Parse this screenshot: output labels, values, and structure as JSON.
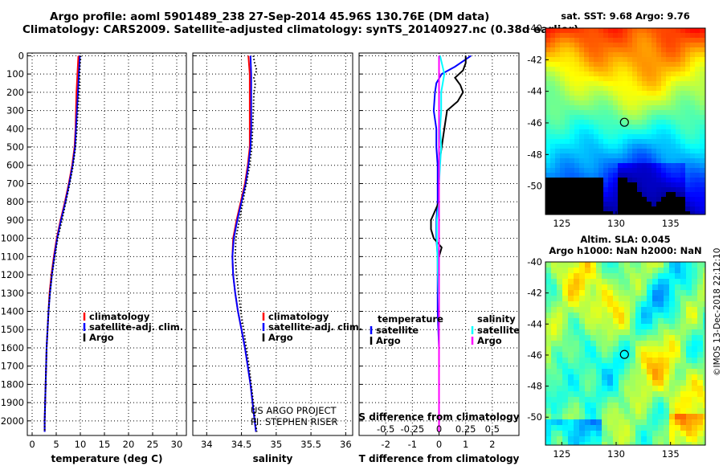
{
  "header": {
    "line1": "Argo profile: aoml 5901489_238 27-Sep-2014 45.96S 130.76E (DM data)",
    "line2": "Climatology: CARS2009. Satellite-adjusted climatology: synTS_20140927.nc (0.38d earlier)"
  },
  "credit": "©IMOS 13-Dec-2018 22:12:10",
  "colors": {
    "climatology": "#ff0000",
    "satellite": "#0000ff",
    "argo": "#000000",
    "sal_satellite": "#00ffff",
    "sal_argo": "#ff00ff"
  },
  "chart_data": [
    {
      "type": "line",
      "xlabel": "temperature (deg C)",
      "ylabel": "",
      "xlim": [
        -1,
        32
      ],
      "ylim": [
        2080,
        -15
      ],
      "x_ticks": [
        "0",
        "5",
        "10",
        "15",
        "20",
        "25",
        "30"
      ],
      "y_ticks": [
        "0",
        "100",
        "200",
        "300",
        "400",
        "500",
        "600",
        "700",
        "800",
        "900",
        "1000",
        "1100",
        "1200",
        "1300",
        "1400",
        "1500",
        "1600",
        "1700",
        "1800",
        "1900",
        "2000"
      ],
      "grid": true,
      "legend": "lower-right",
      "series": [
        {
          "name": "climatology",
          "color": "#ff0000",
          "depth": [
            0,
            50,
            100,
            150,
            200,
            300,
            400,
            500,
            600,
            700,
            800,
            900,
            1000,
            1100,
            1200,
            1300,
            1400,
            1500,
            1600,
            1700,
            1800,
            1900,
            2000,
            2060
          ],
          "values": [
            9.6,
            9.5,
            9.4,
            9.3,
            9.2,
            9.1,
            9.0,
            8.8,
            8.3,
            7.6,
            6.8,
            5.9,
            5.1,
            4.5,
            4.0,
            3.6,
            3.4,
            3.2,
            3.0,
            2.9,
            2.8,
            2.7,
            2.6,
            2.6
          ]
        },
        {
          "name": "satellite-adj. clim.",
          "color": "#0000ff",
          "depth": [
            0,
            50,
            100,
            150,
            200,
            300,
            400,
            500,
            600,
            700,
            800,
            900,
            1000,
            1100,
            1200,
            1300,
            1400,
            1500,
            1600,
            1700,
            1800,
            1900,
            2000,
            2060
          ],
          "values": [
            9.9,
            9.8,
            9.7,
            9.6,
            9.5,
            9.3,
            9.1,
            8.9,
            8.4,
            7.7,
            6.9,
            6.0,
            5.2,
            4.6,
            4.1,
            3.7,
            3.4,
            3.2,
            3.0,
            2.9,
            2.8,
            2.7,
            2.6,
            2.6
          ]
        },
        {
          "name": "Argo",
          "color": "#000000",
          "depth": [
            0,
            30,
            60,
            100,
            150,
            200,
            300,
            400,
            500,
            600,
            700,
            800,
            900,
            1000,
            1100,
            1200,
            1300,
            1400,
            1500,
            1600,
            1700,
            1800,
            1900,
            2000,
            2060
          ],
          "values": [
            10.1,
            10.0,
            9.9,
            9.8,
            9.8,
            9.7,
            9.5,
            9.3,
            9.0,
            8.5,
            7.8,
            7.0,
            6.2,
            5.3,
            4.7,
            4.1,
            3.7,
            3.4,
            3.2,
            3.0,
            2.9,
            2.8,
            2.7,
            2.6,
            2.6
          ]
        }
      ]
    },
    {
      "type": "line",
      "xlabel": "salinity",
      "ylabel": "",
      "xlim": [
        33.8,
        36.1
      ],
      "ylim": [
        2080,
        -15
      ],
      "x_ticks": [
        "34",
        "34.5",
        "35",
        "35.5",
        "36"
      ],
      "grid": true,
      "legend": "lower-right",
      "annotation": [
        "US ARGO PROJECT",
        "PI: STEPHEN RISER"
      ],
      "series": [
        {
          "name": "climatology",
          "color": "#ff0000",
          "depth": [
            0,
            100,
            200,
            300,
            400,
            500,
            600,
            700,
            800,
            900,
            1000,
            1100,
            1200,
            1300,
            1400,
            1500,
            1600,
            1700,
            1800,
            1900,
            2000,
            2060
          ],
          "values": [
            34.6,
            34.62,
            34.62,
            34.62,
            34.62,
            34.62,
            34.59,
            34.55,
            34.49,
            34.43,
            34.38,
            34.37,
            34.38,
            34.41,
            34.45,
            34.5,
            34.55,
            34.59,
            34.63,
            34.66,
            34.69,
            34.71
          ]
        },
        {
          "name": "satellite-adj. clim.",
          "color": "#0000ff",
          "depth": [
            0,
            100,
            200,
            300,
            400,
            500,
            600,
            700,
            800,
            900,
            1000,
            1100,
            1200,
            1300,
            1400,
            1500,
            1600,
            1700,
            1800,
            1900,
            2000,
            2060
          ],
          "values": [
            34.63,
            34.64,
            34.64,
            34.64,
            34.64,
            34.63,
            34.6,
            34.56,
            34.5,
            34.44,
            34.39,
            34.37,
            34.38,
            34.41,
            34.45,
            34.5,
            34.55,
            34.59,
            34.63,
            34.66,
            34.69,
            34.71
          ]
        },
        {
          "name": "Argo",
          "color": "#000000",
          "depth": [
            0,
            40,
            80,
            120,
            160,
            200,
            300,
            400,
            500,
            600,
            700,
            800,
            900,
            1000,
            1100,
            1200,
            1300,
            1400,
            1500,
            1600,
            1700,
            1800,
            1900,
            2000,
            2060
          ],
          "values": [
            34.67,
            34.69,
            34.72,
            34.68,
            34.7,
            34.68,
            34.67,
            34.66,
            34.65,
            34.62,
            34.57,
            34.52,
            34.47,
            34.42,
            34.41,
            34.43,
            34.46,
            34.49,
            34.53,
            34.57,
            34.61,
            34.64,
            34.67,
            34.7,
            34.72
          ]
        }
      ]
    },
    {
      "type": "line",
      "xlabel": "T difference from climatology",
      "xlabel2": "S difference from climatology",
      "xlim": [
        -3,
        3
      ],
      "ylim": [
        2080,
        -15
      ],
      "x_ticks": [
        "-2",
        "-1",
        "0",
        "1",
        "2"
      ],
      "x2_ticks": [
        "-0.5",
        "-0.25",
        "0",
        "0.25",
        "0.5"
      ],
      "grid": true,
      "legend": "lower",
      "legend_groups": {
        "temperature": "temperature",
        "salinity": "salinity"
      },
      "series": [
        {
          "name": "satellite",
          "group": "temperature",
          "color": "#0000ff",
          "depth": [
            0,
            30,
            60,
            100,
            150,
            200,
            300,
            400,
            500,
            600,
            700,
            800,
            900,
            1000,
            1100,
            1200,
            1400,
            1600,
            1800,
            2000,
            2060
          ],
          "values": [
            1.2,
            0.9,
            0.6,
            0.1,
            -0.1,
            -0.15,
            -0.2,
            -0.1,
            -0.1,
            -0.05,
            -0.05,
            -0.05,
            -0.1,
            -0.1,
            -0.05,
            -0.05,
            -0.05,
            0,
            0,
            0,
            0
          ]
        },
        {
          "name": "Argo",
          "group": "temperature",
          "color": "#000000",
          "depth": [
            0,
            40,
            80,
            120,
            160,
            200,
            250,
            300,
            400,
            500,
            600,
            700,
            800,
            900,
            950,
            1000,
            1050,
            1100,
            1200,
            1400,
            1600,
            1800,
            2000,
            2060
          ],
          "values": [
            1.0,
            1.0,
            0.9,
            0.6,
            0.8,
            0.9,
            0.7,
            0.3,
            0.2,
            0.1,
            0,
            0,
            0,
            -0.3,
            -0.3,
            -0.2,
            0.1,
            0,
            0,
            0,
            0,
            0,
            0,
            0
          ]
        },
        {
          "name": "satellite",
          "group": "salinity",
          "color": "#00ffff",
          "depth": [
            0,
            50,
            100,
            200,
            300,
            400,
            500,
            600,
            700,
            800,
            900,
            1000,
            1200,
            1400,
            1600,
            1800,
            2000,
            2060
          ],
          "values": [
            0.01,
            0.03,
            0.05,
            0.02,
            0.02,
            0.01,
            0.02,
            0.01,
            0,
            0,
            -0.02,
            -0.02,
            -0.01,
            0,
            0,
            0,
            0,
            0
          ]
        },
        {
          "name": "Argo",
          "group": "salinity",
          "color": "#ff00ff",
          "depth": [
            0,
            2060
          ],
          "values": [
            0,
            0
          ]
        }
      ]
    },
    {
      "type": "heatmap",
      "title": "sat. SST: 9.68 Argo: 9.76",
      "xlim": [
        123.5,
        138.2
      ],
      "ylim": [
        -51.8,
        -40
      ],
      "x_ticks": [
        "125",
        "130",
        "135"
      ],
      "y_ticks": [
        "-40",
        "-42",
        "-44",
        "-46",
        "-48",
        "-50"
      ],
      "marker": {
        "lon": 130.76,
        "lat": -45.96
      }
    },
    {
      "type": "heatmap",
      "title": "Altim. SLA: 0.045",
      "subtitle": "Argo h1000: NaN h2000: NaN",
      "xlim": [
        123.5,
        138.2
      ],
      "ylim": [
        -51.8,
        -40
      ],
      "x_ticks": [
        "125",
        "130",
        "135"
      ],
      "y_ticks": [
        "-40",
        "-42",
        "-44",
        "-46",
        "-48",
        "-50"
      ],
      "marker": {
        "lon": 130.76,
        "lat": -45.96
      }
    }
  ]
}
